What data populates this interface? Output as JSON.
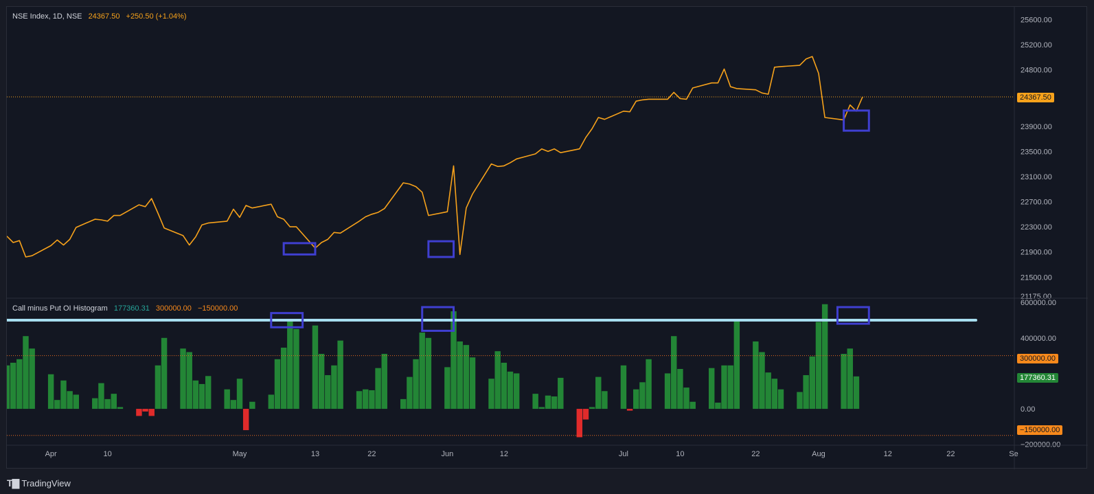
{
  "header": {
    "symbol": "NSE Index, 1D, NSE",
    "last": "24367.50",
    "change": "+250.50 (+1.04%)"
  },
  "indicator": {
    "name": "Call minus Put OI Histogram",
    "value": "177360.31",
    "upper_level": "300000.00",
    "lower_level": "−150000.00"
  },
  "price_tag": "24367.50",
  "ind_tags": {
    "upper": "300000.00",
    "value": "177360.31",
    "lower": "−150000.00"
  },
  "brand": {
    "name": "TradingView"
  },
  "colors": {
    "background": "#131722",
    "price_line": "#f7a21b",
    "hist_positive": "#238636",
    "hist_negative": "#e02b2b",
    "highlight_box": "#3f3fd0",
    "level_line": "#a7def0",
    "dotted_level": "#e96b1f",
    "axis_text": "#b2b5be",
    "legend_text": "#d1d4dc",
    "value_green": "#26a69a"
  },
  "chart_data": [
    {
      "type": "line",
      "title": "NSE Index, 1D, NSE",
      "x_labels": [
        "Apr",
        "10",
        "May",
        "13",
        "22",
        "Jun",
        "12",
        "Jul",
        "10",
        "22",
        "Aug",
        "12",
        "22",
        "Se"
      ],
      "y_ticks": [
        25600,
        25200,
        24800,
        24367.5,
        23900,
        23500,
        23100,
        22700,
        22300,
        21900,
        21500,
        21175
      ],
      "y_tick_labels": [
        "25600.00",
        "25200.00",
        "24800.00",
        "24367.50",
        "23900.00",
        "23500.00",
        "23100.00",
        "22700.00",
        "22300.00",
        "21900.00",
        "21500.00",
        "21175.00"
      ],
      "ylim": [
        21175,
        25800
      ],
      "last_value": 24367.5,
      "grid": false,
      "series": [
        {
          "values": [
            22150,
            22050,
            22080,
            21820,
            21840,
            22000,
            22090,
            22010,
            22100,
            22290,
            22420,
            22410,
            22390,
            22480,
            22480,
            22650,
            22620,
            22750,
            22520,
            22280,
            22160,
            22010,
            22140,
            22330,
            22360,
            22390,
            22580,
            22450,
            22640,
            22600,
            22660,
            22460,
            22420,
            22300,
            22300,
            21960,
            22050,
            22100,
            22210,
            22200,
            22390,
            22460,
            22500,
            22530,
            22590,
            23000,
            22980,
            22940,
            22850,
            22480,
            22540,
            23270,
            21860,
            22600,
            22820,
            23300,
            23260,
            23270,
            23320,
            23380,
            23460,
            23540,
            23500,
            23540,
            23480,
            23540,
            23720,
            23860,
            24040,
            24010,
            24140,
            24130,
            24300,
            24320,
            24330,
            24330,
            24440,
            24340,
            24330,
            24510,
            24590,
            24590,
            24810,
            24530,
            24500,
            24480,
            24430,
            24410,
            24840,
            24850,
            24870,
            24970,
            25010,
            24740,
            24040,
            24000,
            24240,
            24140,
            24370
          ]
        }
      ],
      "highlight_boxes": [
        {
          "x_range": [
            "May 8",
            "May 13"
          ],
          "y_range": [
            21860,
            22040
          ]
        },
        {
          "x_range": [
            "May 31",
            "Jun 4"
          ],
          "y_range": [
            21820,
            22070
          ]
        },
        {
          "x_range": [
            "Aug 5",
            "Aug 9"
          ],
          "y_range": [
            23830,
            24150
          ]
        }
      ]
    },
    {
      "type": "bar",
      "title": "Call minus Put OI Histogram",
      "y_ticks": [
        600000,
        400000,
        300000,
        177360.31,
        0,
        -150000,
        -200000
      ],
      "y_tick_labels": [
        "600000.00",
        "400000.00",
        "300000.00",
        "177360.31",
        "0.00",
        "−150000.00",
        "−200000.00"
      ],
      "ylim": [
        -205000,
        620000
      ],
      "levels": {
        "upper": 300000,
        "lower": -150000,
        "reference": 500000
      },
      "last_value": 177360.31,
      "values": [
        245000,
        260000,
        280000,
        410000,
        340000,
        195000,
        50000,
        160000,
        100000,
        80000,
        60000,
        145000,
        55000,
        85000,
        10000,
        -40000,
        -15000,
        -40000,
        245000,
        400000,
        340000,
        320000,
        160000,
        140000,
        185000,
        110000,
        50000,
        170000,
        -120000,
        40000,
        80000,
        280000,
        345000,
        500000,
        450000,
        470000,
        310000,
        190000,
        245000,
        385000,
        100000,
        110000,
        105000,
        230000,
        310000,
        55000,
        180000,
        280000,
        430000,
        400000,
        235000,
        550000,
        380000,
        360000,
        290000,
        170000,
        325000,
        260000,
        210000,
        200000,
        85000,
        10000,
        75000,
        70000,
        175000,
        -160000,
        -60000,
        10000,
        180000,
        100000,
        245000,
        -10000,
        110000,
        150000,
        280000,
        200000,
        410000,
        225000,
        120000,
        40000,
        230000,
        35000,
        245000,
        245000,
        500000,
        380000,
        320000,
        205000,
        170000,
        110000,
        95000,
        190000,
        295000,
        490000,
        590000,
        310000,
        340000,
        183000
      ]
    }
  ]
}
